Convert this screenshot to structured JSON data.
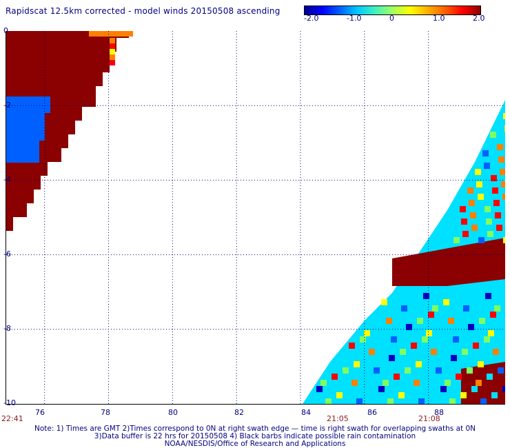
{
  "header": {
    "title": "Rapidscat 12.5km corrected - model winds 20150508 ascending"
  },
  "colorbar": {
    "min": -2.0,
    "max": 2.0,
    "tick_labels": [
      "-2.0",
      "-1.0",
      "0",
      "1.0",
      "2.0"
    ],
    "colors": [
      "#000090",
      "#0000ff",
      "#0060ff",
      "#00c8ff",
      "#40f0c0",
      "#a0ff60",
      "#ffff00",
      "#ffb000",
      "#ff6000",
      "#ff0000",
      "#8b0000"
    ]
  },
  "map": {
    "lat_labels": [
      "0",
      "-2",
      "-4",
      "-6",
      "-8",
      "-10"
    ],
    "lon_labels": [
      "76",
      "78",
      "80",
      "82",
      "84",
      "86",
      "88"
    ],
    "lon_range": [
      74.8,
      90.4
    ],
    "lat_range": [
      0,
      -10
    ],
    "gridlines": "dotted",
    "time_labels": [
      "22:41",
      "21:05",
      "21:08"
    ],
    "swath_colors": {
      "dark_red": "#8b0000",
      "red": "#ff0000",
      "orange": "#ff8000",
      "yellow": "#ffff00",
      "green": "#80ff60",
      "cyan": "#00e0ff",
      "blue": "#0060ff",
      "navy": "#0000c0"
    }
  },
  "notes": {
    "line1": "Note: 1) Times are GMT 2)Times correspond to 0N at right swath edge — time is right swath for overlapping swaths at 0N",
    "line2": "3)Data buffer is 22 hrs for 20150508 4) Black barbs indicate possible rain contamination",
    "line3": "NOAA/NESDIS/Office of Research and Applications"
  }
}
